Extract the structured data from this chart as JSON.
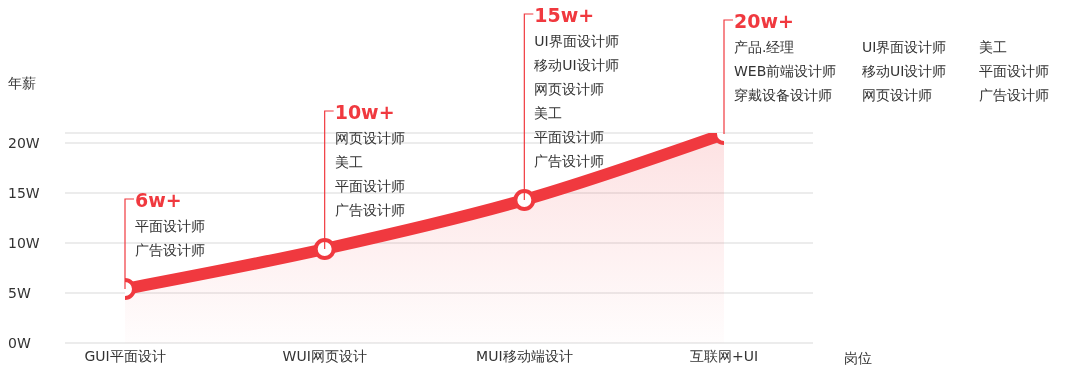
{
  "chart_data": {
    "type": "area",
    "ylabel": "年薪",
    "xlabel": "岗位",
    "categories": [
      "GUI平面设计",
      "WUI网页设计",
      "MUI移动端设计",
      "互联网+UI"
    ],
    "values": [
      5.4,
      9.4,
      14.3,
      20.9
    ],
    "color": "#f0393f",
    "ylim": [
      0,
      21
    ],
    "yticks": [
      {
        "value": 0,
        "label": "0W"
      },
      {
        "value": 5,
        "label": "5W"
      },
      {
        "value": 10,
        "label": "10W"
      },
      {
        "value": 15,
        "label": "15W"
      },
      {
        "value": 20,
        "label": "20W"
      }
    ],
    "grid": "y",
    "marker": "circle",
    "annotations": [
      {
        "text": "6w+",
        "x": "GUI平面设计",
        "y": 5.4
      },
      "平面设计师",
      "广告设计师",
      {
        "text": "10w+",
        "x": "WUI网页设计",
        "y": 9.4
      },
      "网页设计师",
      "美工",
      "平面设计师",
      "广告设计师",
      {
        "text": "15w+",
        "x": "MUI移动端设计",
        "y": 14.3
      },
      "UI界面设计师",
      "移动UI设计师",
      "网页设计师",
      "美工",
      "平面设计师",
      "广告设计师",
      {
        "text": "20w+",
        "x": "互联网+UI",
        "y": 20.9
      },
      "产品.经理",
      "WEB前端设计师",
      "穿戴设备设计师",
      "UI界面设计师",
      "移动UI设计师",
      "网页设计师",
      "美工",
      "平面设计师",
      "广告设计师"
    ]
  }
}
